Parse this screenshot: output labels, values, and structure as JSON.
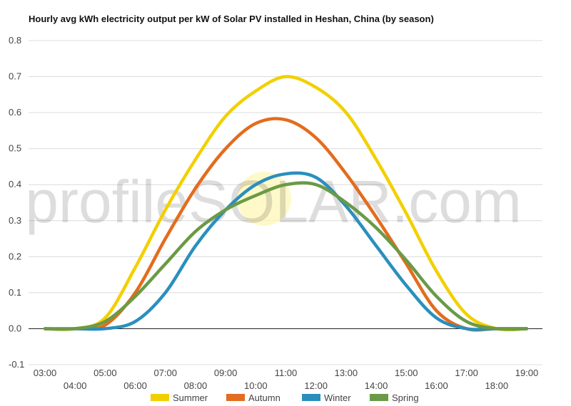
{
  "chart_data": {
    "type": "line",
    "title": "Hourly avg kWh electricity output per kW of Solar PV installed in Heshan, China (by season)",
    "xlabel": "",
    "ylabel": "",
    "ylim": [
      -0.1,
      0.8
    ],
    "yticks": [
      -0.1,
      0.0,
      0.1,
      0.2,
      0.3,
      0.4,
      0.5,
      0.6,
      0.7,
      0.8
    ],
    "ytick_labels": [
      "-0.1",
      "0.0",
      "0.1",
      "0.2",
      "0.3",
      "0.4",
      "0.5",
      "0.6",
      "0.7",
      "0.8"
    ],
    "x": [
      3,
      4,
      5,
      6,
      7,
      8,
      9,
      10,
      11,
      12,
      13,
      14,
      15,
      16,
      17,
      18,
      19
    ],
    "x_labels": [
      "03:00",
      "04:00",
      "05:00",
      "06:00",
      "07:00",
      "08:00",
      "09:00",
      "10:00",
      "11:00",
      "12:00",
      "13:00",
      "14:00",
      "15:00",
      "16:00",
      "17:00",
      "18:00",
      "19:00"
    ],
    "grid": true,
    "legend": "bottom",
    "watermark": "profileSOLAR.com",
    "series": [
      {
        "name": "Summer",
        "color": "#f2d000",
        "values": [
          0.0,
          0.0,
          0.03,
          0.17,
          0.33,
          0.47,
          0.59,
          0.66,
          0.7,
          0.67,
          0.6,
          0.47,
          0.32,
          0.16,
          0.04,
          0.0,
          0.0
        ]
      },
      {
        "name": "Autumn",
        "color": "#e36c1e",
        "values": [
          0.0,
          0.0,
          0.01,
          0.1,
          0.25,
          0.39,
          0.5,
          0.57,
          0.58,
          0.53,
          0.43,
          0.31,
          0.18,
          0.05,
          0.0,
          0.0,
          0.0
        ]
      },
      {
        "name": "Winter",
        "color": "#2a8fbd",
        "values": [
          0.0,
          0.0,
          0.0,
          0.02,
          0.1,
          0.23,
          0.33,
          0.4,
          0.43,
          0.42,
          0.34,
          0.23,
          0.12,
          0.03,
          0.0,
          0.0,
          0.0
        ]
      },
      {
        "name": "Spring",
        "color": "#6a9a46",
        "values": [
          0.0,
          0.0,
          0.02,
          0.09,
          0.18,
          0.27,
          0.33,
          0.37,
          0.4,
          0.4,
          0.35,
          0.28,
          0.19,
          0.09,
          0.02,
          0.0,
          0.0
        ]
      }
    ]
  }
}
